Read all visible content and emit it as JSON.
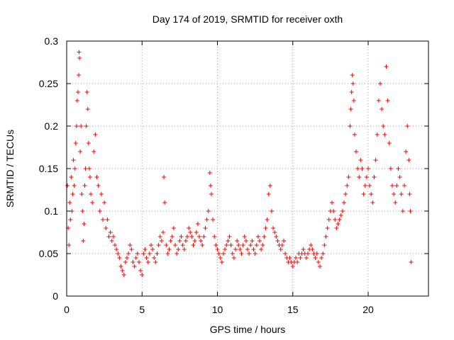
{
  "chart_data": {
    "type": "scatter",
    "title": "Day 174 of 2019, SRMTID for receiver oxth",
    "xlabel": "GPS time / hours",
    "ylabel": "SRMTID / TECUs",
    "xlim": [
      0,
      24
    ],
    "ylim": [
      0,
      0.3
    ],
    "x_ticks": [
      0,
      5,
      10,
      15,
      20
    ],
    "x_tick_labels": [
      "0",
      "5",
      "10",
      "15",
      "20"
    ],
    "y_ticks": [
      0,
      0.05,
      0.1,
      0.15,
      0.2,
      0.25,
      0.3
    ],
    "y_tick_labels": [
      "0",
      "0.05",
      "0.1",
      "0.15",
      "0.2",
      "0.25",
      "0.3"
    ],
    "grid": true,
    "legend": "none",
    "marker": "+",
    "color": "#ff0000",
    "series": [
      {
        "points": [
          [
            0.05,
            0.13
          ],
          [
            0.1,
            0.08
          ],
          [
            0.15,
            0.06
          ],
          [
            0.2,
            0.11
          ],
          [
            0.25,
            0.09
          ],
          [
            0.3,
            0.14
          ],
          [
            0.35,
            0.1
          ],
          [
            0.4,
            0.12
          ],
          [
            0.45,
            0.16
          ],
          [
            0.5,
            0.13
          ],
          [
            0.55,
            0.15
          ],
          [
            0.6,
            0.18
          ],
          [
            0.65,
            0.2
          ],
          [
            0.7,
            0.23
          ],
          [
            0.75,
            0.24
          ],
          [
            0.8,
            0.26
          ],
          [
            0.82,
            0.287
          ],
          [
            0.85,
            0.28
          ],
          [
            0.9,
            0.17
          ],
          [
            0.95,
            0.2
          ],
          [
            1.0,
            0.12
          ],
          [
            1.05,
            0.1
          ],
          [
            1.1,
            0.065
          ],
          [
            1.15,
            0.085
          ],
          [
            1.2,
            0.13
          ],
          [
            1.25,
            0.15
          ],
          [
            1.3,
            0.2
          ],
          [
            1.35,
            0.24
          ],
          [
            1.4,
            0.22
          ],
          [
            1.45,
            0.18
          ],
          [
            1.5,
            0.15
          ],
          [
            1.55,
            0.14
          ],
          [
            1.6,
            0.12
          ],
          [
            1.7,
            0.11
          ],
          [
            1.8,
            0.17
          ],
          [
            1.9,
            0.19
          ],
          [
            2.0,
            0.14
          ],
          [
            2.1,
            0.13
          ],
          [
            2.2,
            0.1
          ],
          [
            2.3,
            0.12
          ],
          [
            2.4,
            0.09
          ],
          [
            2.5,
            0.11
          ],
          [
            2.6,
            0.08
          ],
          [
            2.7,
            0.09
          ],
          [
            2.8,
            0.07
          ],
          [
            2.9,
            0.075
          ],
          [
            3.0,
            0.065
          ],
          [
            3.1,
            0.07
          ],
          [
            3.2,
            0.06
          ],
          [
            3.3,
            0.055
          ],
          [
            3.4,
            0.05
          ],
          [
            3.5,
            0.045
          ],
          [
            3.6,
            0.035
          ],
          [
            3.7,
            0.03
          ],
          [
            3.8,
            0.025
          ],
          [
            3.9,
            0.04
          ],
          [
            4.0,
            0.045
          ],
          [
            4.1,
            0.05
          ],
          [
            4.2,
            0.06
          ],
          [
            4.3,
            0.055
          ],
          [
            4.4,
            0.04
          ],
          [
            4.5,
            0.035
          ],
          [
            4.6,
            0.045
          ],
          [
            4.7,
            0.05
          ],
          [
            4.8,
            0.04
          ],
          [
            4.9,
            0.03
          ],
          [
            5.0,
            0.025
          ],
          [
            5.1,
            0.05
          ],
          [
            5.2,
            0.055
          ],
          [
            5.3,
            0.045
          ],
          [
            5.4,
            0.04
          ],
          [
            5.5,
            0.05
          ],
          [
            5.6,
            0.06
          ],
          [
            5.7,
            0.055
          ],
          [
            5.8,
            0.045
          ],
          [
            5.9,
            0.04
          ],
          [
            6.0,
            0.05
          ],
          [
            6.1,
            0.06
          ],
          [
            6.2,
            0.07
          ],
          [
            6.3,
            0.065
          ],
          [
            6.4,
            0.075
          ],
          [
            6.45,
            0.14
          ],
          [
            6.5,
            0.11
          ],
          [
            6.6,
            0.06
          ],
          [
            6.7,
            0.05
          ],
          [
            6.8,
            0.055
          ],
          [
            6.9,
            0.065
          ],
          [
            7.0,
            0.07
          ],
          [
            7.1,
            0.08
          ],
          [
            7.2,
            0.06
          ],
          [
            7.3,
            0.05
          ],
          [
            7.4,
            0.055
          ],
          [
            7.5,
            0.065
          ],
          [
            7.6,
            0.07
          ],
          [
            7.7,
            0.06
          ],
          [
            7.8,
            0.055
          ],
          [
            7.9,
            0.065
          ],
          [
            8.0,
            0.07
          ],
          [
            8.1,
            0.08
          ],
          [
            8.2,
            0.075
          ],
          [
            8.3,
            0.07
          ],
          [
            8.4,
            0.06
          ],
          [
            8.5,
            0.065
          ],
          [
            8.6,
            0.075
          ],
          [
            8.7,
            0.085
          ],
          [
            8.8,
            0.07
          ],
          [
            8.9,
            0.065
          ],
          [
            9.0,
            0.06
          ],
          [
            9.1,
            0.07
          ],
          [
            9.2,
            0.08
          ],
          [
            9.3,
            0.09
          ],
          [
            9.4,
            0.1
          ],
          [
            9.5,
            0.145
          ],
          [
            9.55,
            0.13
          ],
          [
            9.6,
            0.12
          ],
          [
            9.7,
            0.09
          ],
          [
            9.8,
            0.07
          ],
          [
            9.9,
            0.06
          ],
          [
            10.0,
            0.055
          ],
          [
            10.1,
            0.05
          ],
          [
            10.2,
            0.045
          ],
          [
            10.3,
            0.04
          ],
          [
            10.4,
            0.05
          ],
          [
            10.5,
            0.055
          ],
          [
            10.6,
            0.06
          ],
          [
            10.7,
            0.065
          ],
          [
            10.8,
            0.07
          ],
          [
            10.9,
            0.06
          ],
          [
            11.0,
            0.05
          ],
          [
            11.1,
            0.045
          ],
          [
            11.2,
            0.055
          ],
          [
            11.3,
            0.065
          ],
          [
            11.4,
            0.06
          ],
          [
            11.5,
            0.055
          ],
          [
            11.6,
            0.05
          ],
          [
            11.7,
            0.06
          ],
          [
            11.8,
            0.07
          ],
          [
            11.9,
            0.065
          ],
          [
            12.0,
            0.055
          ],
          [
            12.1,
            0.05
          ],
          [
            12.2,
            0.06
          ],
          [
            12.3,
            0.065
          ],
          [
            12.4,
            0.055
          ],
          [
            12.5,
            0.05
          ],
          [
            12.6,
            0.06
          ],
          [
            12.7,
            0.07
          ],
          [
            12.8,
            0.065
          ],
          [
            12.9,
            0.055
          ],
          [
            13.0,
            0.06
          ],
          [
            13.1,
            0.07
          ],
          [
            13.2,
            0.08
          ],
          [
            13.3,
            0.09
          ],
          [
            13.4,
            0.12
          ],
          [
            13.5,
            0.13
          ],
          [
            13.6,
            0.1
          ],
          [
            13.7,
            0.08
          ],
          [
            13.8,
            0.075
          ],
          [
            13.9,
            0.07
          ],
          [
            14.0,
            0.065
          ],
          [
            14.1,
            0.06
          ],
          [
            14.2,
            0.055
          ],
          [
            14.3,
            0.06
          ],
          [
            14.4,
            0.065
          ],
          [
            14.5,
            0.05
          ],
          [
            14.6,
            0.045
          ],
          [
            14.7,
            0.04
          ],
          [
            14.8,
            0.045
          ],
          [
            14.9,
            0.04
          ],
          [
            15.0,
            0.035
          ],
          [
            15.1,
            0.04
          ],
          [
            15.2,
            0.045
          ],
          [
            15.3,
            0.04
          ],
          [
            15.4,
            0.05
          ],
          [
            15.5,
            0.045
          ],
          [
            15.6,
            0.05
          ],
          [
            15.7,
            0.055
          ],
          [
            15.8,
            0.05
          ],
          [
            15.9,
            0.045
          ],
          [
            16.0,
            0.05
          ],
          [
            16.1,
            0.055
          ],
          [
            16.2,
            0.06
          ],
          [
            16.3,
            0.055
          ],
          [
            16.4,
            0.05
          ],
          [
            16.5,
            0.045
          ],
          [
            16.6,
            0.05
          ],
          [
            16.7,
            0.04
          ],
          [
            16.8,
            0.035
          ],
          [
            16.9,
            0.045
          ],
          [
            17.0,
            0.05
          ],
          [
            17.1,
            0.06
          ],
          [
            17.2,
            0.07
          ],
          [
            17.3,
            0.08
          ],
          [
            17.4,
            0.09
          ],
          [
            17.5,
            0.1
          ],
          [
            17.6,
            0.11
          ],
          [
            17.7,
            0.1
          ],
          [
            17.8,
            0.09
          ],
          [
            17.9,
            0.08
          ],
          [
            18.0,
            0.085
          ],
          [
            18.1,
            0.09
          ],
          [
            18.2,
            0.095
          ],
          [
            18.3,
            0.1
          ],
          [
            18.4,
            0.11
          ],
          [
            18.5,
            0.12
          ],
          [
            18.6,
            0.13
          ],
          [
            18.7,
            0.14
          ],
          [
            18.8,
            0.2
          ],
          [
            18.85,
            0.22
          ],
          [
            18.9,
            0.24
          ],
          [
            18.95,
            0.26
          ],
          [
            19.0,
            0.25
          ],
          [
            19.05,
            0.23
          ],
          [
            19.1,
            0.19
          ],
          [
            19.2,
            0.17
          ],
          [
            19.3,
            0.15
          ],
          [
            19.4,
            0.14
          ],
          [
            19.5,
            0.16
          ],
          [
            19.6,
            0.15
          ],
          [
            19.7,
            0.12
          ],
          [
            19.8,
            0.13
          ],
          [
            19.9,
            0.14
          ],
          [
            20.0,
            0.15
          ],
          [
            20.1,
            0.13
          ],
          [
            20.2,
            0.12
          ],
          [
            20.3,
            0.11
          ],
          [
            20.4,
            0.14
          ],
          [
            20.5,
            0.16
          ],
          [
            20.6,
            0.19
          ],
          [
            20.7,
            0.23
          ],
          [
            20.8,
            0.25
          ],
          [
            20.9,
            0.22
          ],
          [
            21.0,
            0.2
          ],
          [
            21.1,
            0.19
          ],
          [
            21.2,
            0.27
          ],
          [
            21.3,
            0.23
          ],
          [
            21.4,
            0.18
          ],
          [
            21.5,
            0.15
          ],
          [
            21.6,
            0.13
          ],
          [
            21.7,
            0.12
          ],
          [
            21.8,
            0.11
          ],
          [
            21.9,
            0.13
          ],
          [
            22.0,
            0.15
          ],
          [
            22.1,
            0.14
          ],
          [
            22.2,
            0.12
          ],
          [
            22.3,
            0.1
          ],
          [
            22.4,
            0.13
          ],
          [
            22.5,
            0.17
          ],
          [
            22.6,
            0.2
          ],
          [
            22.7,
            0.16
          ],
          [
            22.75,
            0.12
          ],
          [
            22.8,
            0.1
          ],
          [
            22.85,
            0.04
          ]
        ]
      }
    ]
  }
}
